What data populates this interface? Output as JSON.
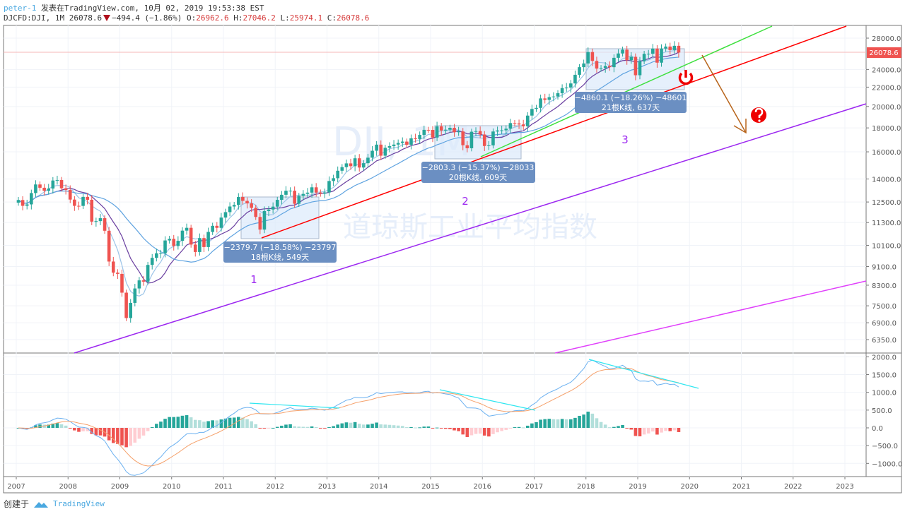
{
  "header": {
    "user": "peter-1",
    "published": "发表在TradingView.com, 10月 02, 2019 19:53:38 EST",
    "symbol": "DJCFD:DJI, 1M",
    "last": "26078.6",
    "change": "−494.4 (−1.86%)",
    "open_label": "O:",
    "open": "26962.6",
    "high_label": "H:",
    "high": "27046.2",
    "low_label": "L:",
    "low": "25974.1",
    "close_label": "C:",
    "close": "26078.6"
  },
  "watermark": {
    "symbol": "DJI, 1M",
    "name": "道琼斯工业平均指数"
  },
  "price_axis": {
    "ticks": [
      "28000.0",
      "24000.0",
      "22000.0",
      "20000.0",
      "18000.0",
      "16000.0",
      "14000.0",
      "12500.0",
      "11300.0",
      "10100.0",
      "9100.0",
      "8300.0",
      "7500.0",
      "6900.0",
      "6350.0"
    ],
    "current": "26078.6"
  },
  "macd_axis": {
    "ticks": [
      "2000.0",
      "1500.0",
      "1000.0",
      "500.0",
      "0.0",
      "−500.0",
      "−1000.0"
    ]
  },
  "time_axis": {
    "ticks": [
      "2007",
      "2008",
      "2009",
      "2010",
      "2011",
      "2012",
      "2013",
      "2014",
      "2015",
      "2016",
      "2017",
      "2018",
      "2019",
      "2020",
      "2021",
      "2022",
      "2023"
    ]
  },
  "annotations": {
    "measure1": {
      "line1": "−2379.7 (−18.58%) −23797",
      "line2": "18根K线, 549天"
    },
    "measure2": {
      "line1": "−2803.3 (−15.37%) −28033",
      "line2": "20根K线, 609天"
    },
    "measure3": {
      "line1": "−4860.1 (−18.26%) −48601",
      "line2": "21根K线, 637天"
    },
    "label1": "1",
    "label2": "2",
    "label3": "3"
  },
  "footer": {
    "created": "创建于",
    "brand": "TradingView"
  },
  "colors": {
    "up": "#26a69a",
    "down": "#ef5350",
    "accent": "#4aa8e0"
  },
  "chart_data": {
    "type": "candlestick",
    "start": "2007-01",
    "interval": "1M",
    "closes": [
      12622,
      12268,
      12354,
      13062,
      13627,
      13408,
      13211,
      13357,
      13895,
      13930,
      13371,
      13264,
      12650,
      12266,
      12262,
      12820,
      12638,
      11350,
      11378,
      11543,
      10851,
      9325,
      8829,
      8776,
      8001,
      7062,
      7609,
      8168,
      8500,
      8447,
      9172,
      9496,
      9712,
      9713,
      10344,
      10428,
      10067,
      10325,
      10857,
      11009,
      10137,
      9774,
      10466,
      10015,
      10788,
      11118,
      11006,
      11578,
      11892,
      12226,
      12320,
      12811,
      12570,
      12414,
      12143,
      11614,
      10913,
      11955,
      12046,
      12218,
      12633,
      12952,
      13212,
      13214,
      12393,
      12880,
      13009,
      13091,
      13437,
      13096,
      13026,
      13104,
      13861,
      14054,
      14579,
      14840,
      15116,
      14910,
      15500,
      14810,
      15130,
      15546,
      16086,
      16577,
      15699,
      16322,
      16458,
      16581,
      16717,
      16827,
      16563,
      17098,
      17043,
      17391,
      17828,
      17823,
      17165,
      18133,
      17776,
      17841,
      18011,
      17620,
      17690,
      16528,
      16285,
      17664,
      17720,
      17425,
      16466,
      16517,
      17685,
      17774,
      17787,
      17930,
      18432,
      18401,
      18308,
      18142,
      19124,
      19763,
      19864,
      20812,
      20663,
      20941,
      21009,
      21350,
      21891,
      21948,
      22405,
      23377,
      24272,
      24719,
      26149,
      25029,
      24103,
      24163,
      24416,
      24271,
      25415,
      25965,
      26458,
      25116,
      25538,
      23327,
      24999,
      25916,
      25929,
      26593,
      24815,
      26600,
      26864,
      26403,
      26962,
      26079
    ]
  }
}
